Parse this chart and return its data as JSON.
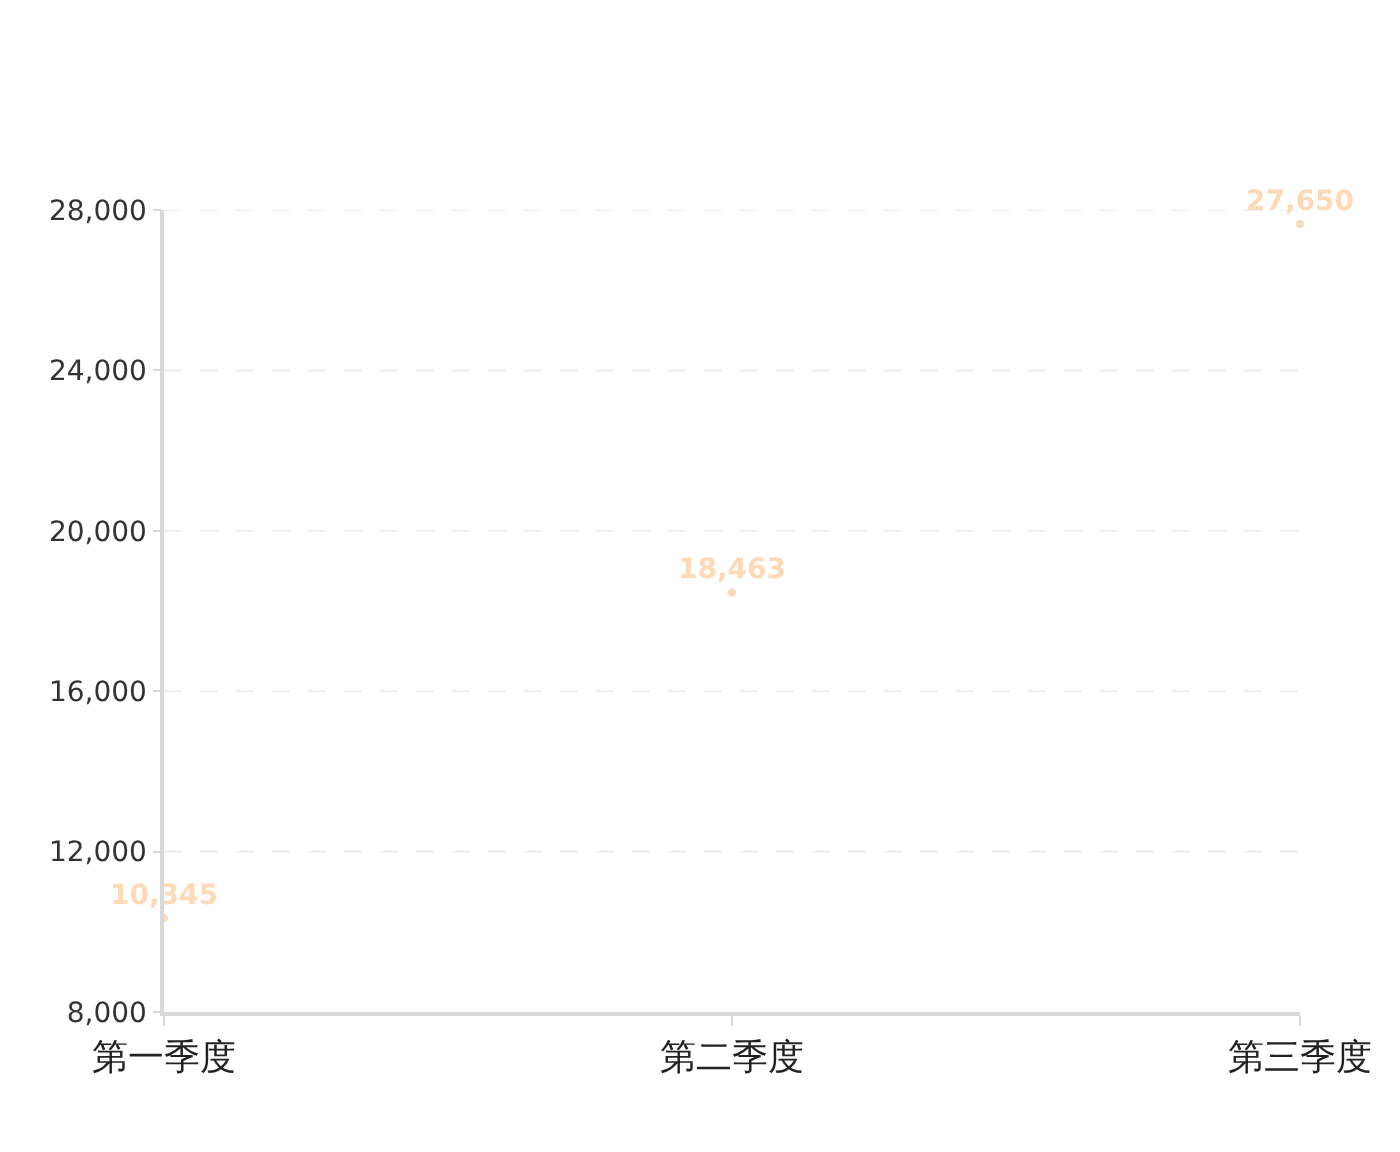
{
  "chart_data": {
    "type": "scatter",
    "categories": [
      "第一季度",
      "第二季度",
      "第三季度"
    ],
    "values": [
      10345,
      18463,
      27650
    ],
    "value_labels": [
      "10,345",
      "18,463",
      "27,650"
    ],
    "color": "#fdd9b5",
    "marker": "circle",
    "ylim": [
      8000,
      28000
    ],
    "yticks": [
      {
        "value": 8000,
        "label": "8,000"
      },
      {
        "value": 12000,
        "label": "12,000"
      },
      {
        "value": 16000,
        "label": "16,000"
      },
      {
        "value": 20000,
        "label": "20,000"
      },
      {
        "value": 24000,
        "label": "24,000"
      },
      {
        "value": 28000,
        "label": "28,000"
      }
    ],
    "grid": "y"
  }
}
